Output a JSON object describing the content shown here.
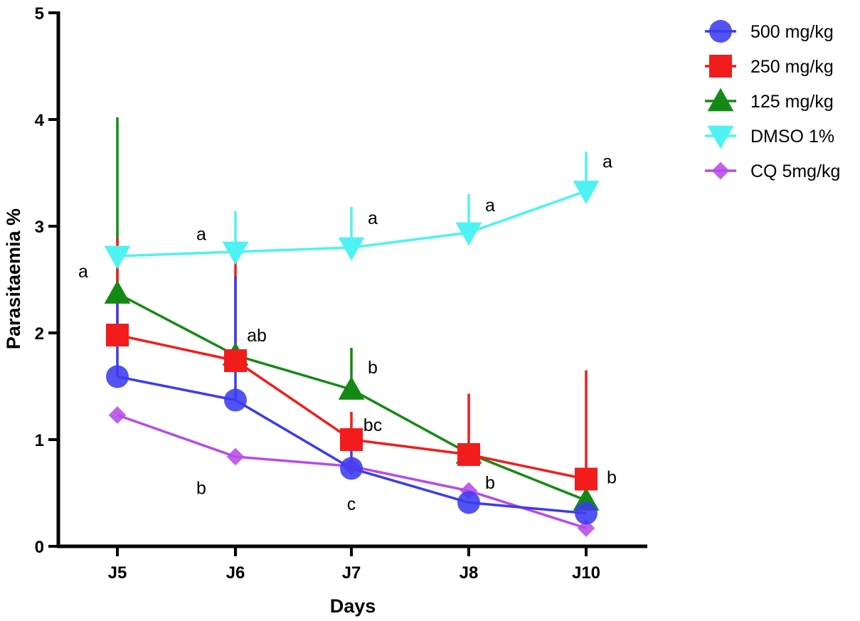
{
  "chart_data": {
    "type": "line",
    "title": "",
    "xlabel": "Days",
    "ylabel": "Parasitaemia %",
    "categories": [
      "J5",
      "J6",
      "J7",
      "J8",
      "J10"
    ],
    "ylim": [
      0,
      5
    ],
    "yticks": [
      "0",
      "1",
      "2",
      "3",
      "4",
      "5"
    ],
    "grid": false,
    "legend_position": "top-right",
    "series": [
      {
        "name": "500 mg/kg",
        "color": "#3b3bf0",
        "marker": "circle",
        "values": [
          1.59,
          1.37,
          0.73,
          0.41,
          0.31
        ],
        "error_upper": [
          2.28,
          2.53,
          0.95,
          0.41,
          0.31
        ]
      },
      {
        "name": "250 mg/kg",
        "color": "#f21c1c",
        "marker": "square",
        "values": [
          1.98,
          1.74,
          1.0,
          0.86,
          0.63
        ],
        "error_upper": [
          2.89,
          2.85,
          1.26,
          1.43,
          1.65
        ]
      },
      {
        "name": "125 mg/kg",
        "color": "#148a14",
        "marker": "triangle-up",
        "values": [
          2.37,
          1.79,
          1.47,
          0.87,
          0.43
        ],
        "error_upper": [
          4.02,
          1.79,
          1.86,
          0.87,
          0.43
        ]
      },
      {
        "name": "DMSO 1%",
        "color": "#4df2f2",
        "marker": "triangle-down",
        "values": [
          2.72,
          2.76,
          2.8,
          2.94,
          3.33
        ],
        "error_upper": [
          2.72,
          3.14,
          3.18,
          3.3,
          3.7
        ]
      },
      {
        "name": "CQ 5mg/kg",
        "color": "#b84be8",
        "marker": "diamond",
        "values": [
          1.23,
          0.84,
          0.75,
          0.52,
          0.17
        ],
        "error_upper": [
          1.23,
          0.84,
          0.75,
          0.52,
          0.17
        ]
      }
    ],
    "annotations": [
      {
        "text": "a",
        "category": "J5",
        "y": 2.58,
        "offset": "left"
      },
      {
        "text": "a",
        "category": "J6",
        "y": 2.93,
        "offset": "left"
      },
      {
        "text": "ab",
        "category": "J6",
        "y": 1.98,
        "offset": "right"
      },
      {
        "text": "b",
        "category": "J6",
        "y": 0.55,
        "offset": "left"
      },
      {
        "text": "a",
        "category": "J7",
        "y": 3.08,
        "offset": "right"
      },
      {
        "text": "b",
        "category": "J7",
        "y": 1.68,
        "offset": "right"
      },
      {
        "text": "bc",
        "category": "J7",
        "y": 1.14,
        "offset": "right"
      },
      {
        "text": "c",
        "category": "J7",
        "y": 0.4,
        "offset": "center"
      },
      {
        "text": "a",
        "category": "J8",
        "y": 3.2,
        "offset": "right"
      },
      {
        "text": "b",
        "category": "J8",
        "y": 0.6,
        "offset": "right"
      },
      {
        "text": "a",
        "category": "J10",
        "y": 3.61,
        "offset": "right"
      },
      {
        "text": "b",
        "category": "J10",
        "y": 0.65,
        "offset": "far-right"
      }
    ]
  }
}
